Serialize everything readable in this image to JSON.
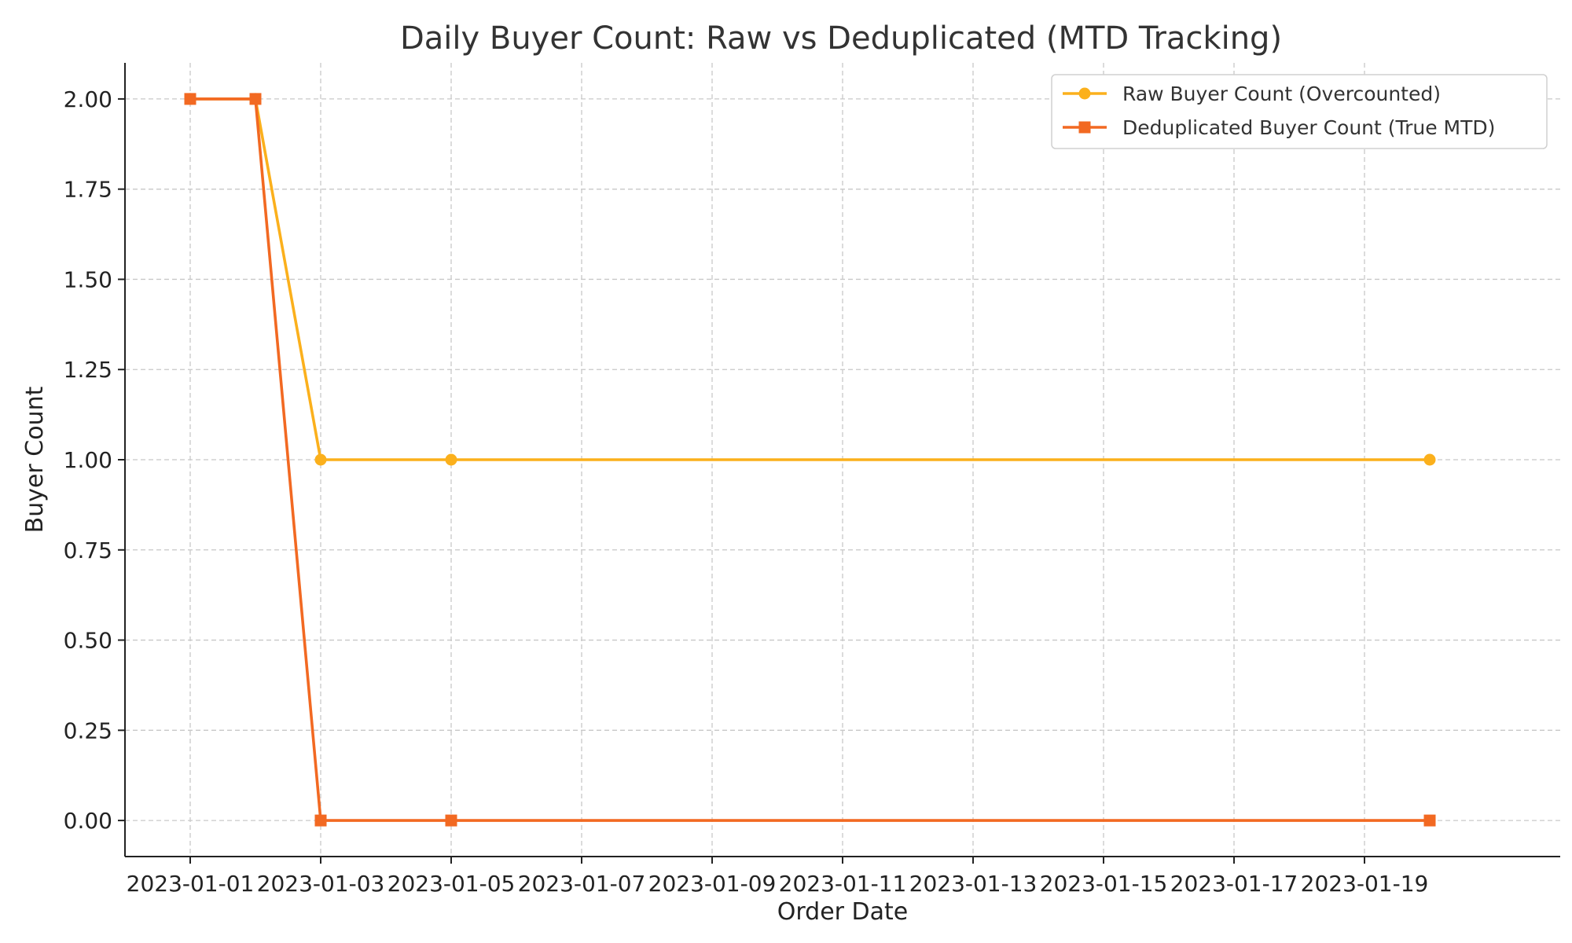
{
  "chart_data": {
    "type": "line",
    "title": "Daily Buyer Count: Raw vs Deduplicated (MTD Tracking)",
    "xlabel": "Order Date",
    "ylabel": "Buyer Count",
    "x": [
      "2023-01-01",
      "2023-01-02",
      "2023-01-03",
      "2023-01-05",
      "2023-01-20"
    ],
    "xlim": [
      "2022-12-31",
      "2023-01-22"
    ],
    "ylim": [
      -0.1,
      2.1
    ],
    "x_ticks": [
      "2023-01-01",
      "2023-01-03",
      "2023-01-05",
      "2023-01-07",
      "2023-01-09",
      "2023-01-11",
      "2023-01-13",
      "2023-01-15",
      "2023-01-17",
      "2023-01-19"
    ],
    "y_ticks": [
      "0.00",
      "0.25",
      "0.50",
      "0.75",
      "1.00",
      "1.25",
      "1.50",
      "1.75",
      "2.00"
    ],
    "grid": true,
    "legend_position": "top-right",
    "series": [
      {
        "name": "Raw Buyer Count (Overcounted)",
        "values": [
          2,
          2,
          1,
          1,
          1
        ],
        "color": "#fbb01c",
        "marker": "circle"
      },
      {
        "name": "Deduplicated Buyer Count (True MTD)",
        "values": [
          2,
          2,
          0,
          0,
          0
        ],
        "color": "#f26922",
        "marker": "square"
      }
    ]
  }
}
